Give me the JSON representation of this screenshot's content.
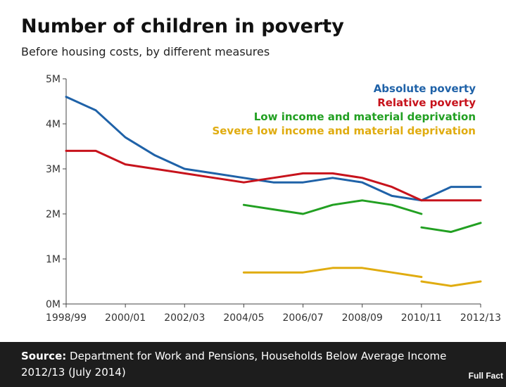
{
  "title": "Number of children in poverty",
  "subtitle": "Before housing costs, by different measures",
  "footer": {
    "source_label": "Source:",
    "source_text": " Department for Work and Pensions, Households Below Average Income 2012/13 (July 2014)",
    "logo_text": "Full Fact"
  },
  "chart_data": {
    "type": "line",
    "x_tick_labels": [
      "1998/99",
      "2000/01",
      "2002/03",
      "2004/05",
      "2006/07",
      "2008/09",
      "2010/11",
      "2012/13"
    ],
    "y_tick_labels": [
      "0M",
      "1M",
      "2M",
      "3M",
      "4M",
      "5M"
    ],
    "ylim": [
      0,
      5
    ],
    "grid": false,
    "legend_position": "top-right",
    "series": [
      {
        "name": "Absolute poverty",
        "color": "#1f62a8",
        "segments": [
          [
            {
              "x": 1998,
              "y": 4.6
            },
            {
              "x": 1999,
              "y": 4.3
            },
            {
              "x": 2000,
              "y": 3.7
            },
            {
              "x": 2001,
              "y": 3.3
            },
            {
              "x": 2002,
              "y": 3.0
            },
            {
              "x": 2003,
              "y": 2.9
            },
            {
              "x": 2004,
              "y": 2.8
            },
            {
              "x": 2005,
              "y": 2.7
            },
            {
              "x": 2006,
              "y": 2.7
            },
            {
              "x": 2007,
              "y": 2.8
            },
            {
              "x": 2008,
              "y": 2.7
            },
            {
              "x": 2009,
              "y": 2.4
            },
            {
              "x": 2010,
              "y": 2.3
            },
            {
              "x": 2011,
              "y": 2.6
            },
            {
              "x": 2012,
              "y": 2.6
            }
          ]
        ]
      },
      {
        "name": "Relative poverty",
        "color": "#c7131c",
        "segments": [
          [
            {
              "x": 1998,
              "y": 3.4
            },
            {
              "x": 1999,
              "y": 3.4
            },
            {
              "x": 2000,
              "y": 3.1
            },
            {
              "x": 2001,
              "y": 3.0
            },
            {
              "x": 2002,
              "y": 2.9
            },
            {
              "x": 2003,
              "y": 2.8
            },
            {
              "x": 2004,
              "y": 2.7
            },
            {
              "x": 2005,
              "y": 2.8
            },
            {
              "x": 2006,
              "y": 2.9
            },
            {
              "x": 2007,
              "y": 2.9
            },
            {
              "x": 2008,
              "y": 2.8
            },
            {
              "x": 2009,
              "y": 2.6
            },
            {
              "x": 2010,
              "y": 2.3
            },
            {
              "x": 2011,
              "y": 2.3
            },
            {
              "x": 2012,
              "y": 2.3
            }
          ]
        ]
      },
      {
        "name": "Low income and material deprivation",
        "color": "#22a022",
        "segments": [
          [
            {
              "x": 2004,
              "y": 2.2
            },
            {
              "x": 2005,
              "y": 2.1
            },
            {
              "x": 2006,
              "y": 2.0
            },
            {
              "x": 2007,
              "y": 2.2
            },
            {
              "x": 2008,
              "y": 2.3
            },
            {
              "x": 2009,
              "y": 2.2
            },
            {
              "x": 2010,
              "y": 2.0
            }
          ],
          [
            {
              "x": 2010,
              "y": 1.7
            },
            {
              "x": 2011,
              "y": 1.6
            },
            {
              "x": 2012,
              "y": 1.8
            }
          ]
        ]
      },
      {
        "name": "Severe low income and material deprivation",
        "color": "#e0ac10",
        "segments": [
          [
            {
              "x": 2004,
              "y": 0.7
            },
            {
              "x": 2005,
              "y": 0.7
            },
            {
              "x": 2006,
              "y": 0.7
            },
            {
              "x": 2007,
              "y": 0.8
            },
            {
              "x": 2008,
              "y": 0.8
            },
            {
              "x": 2009,
              "y": 0.7
            },
            {
              "x": 2010,
              "y": 0.6
            }
          ],
          [
            {
              "x": 2010,
              "y": 0.5
            },
            {
              "x": 2011,
              "y": 0.4
            },
            {
              "x": 2012,
              "y": 0.5
            }
          ]
        ]
      }
    ]
  }
}
